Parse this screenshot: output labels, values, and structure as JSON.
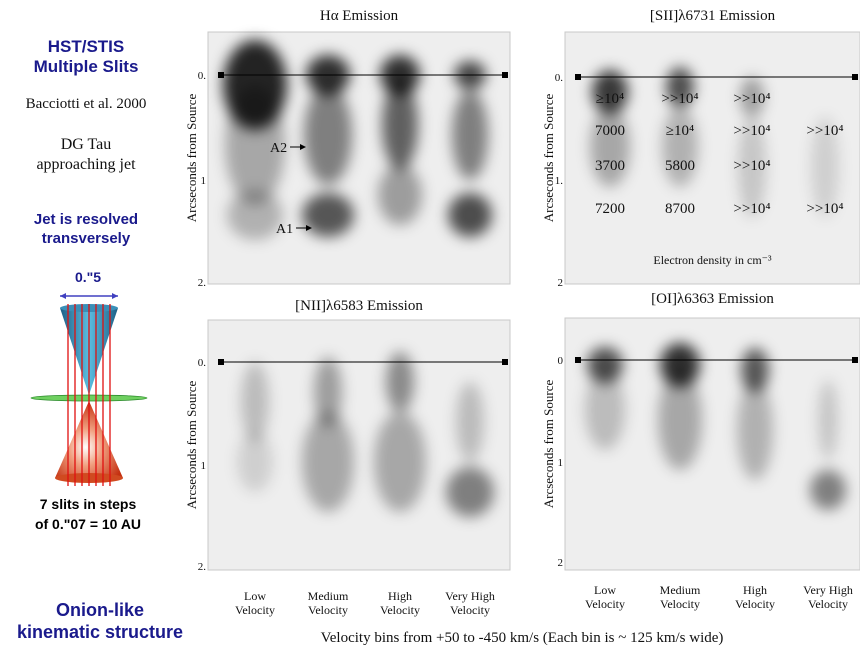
{
  "sidebar": {
    "title": [
      "HST/STIS",
      "Multiple Slits"
    ],
    "citation": "Bacciotti et al. 2000",
    "object": [
      "DG Tau",
      "approaching jet"
    ],
    "resolved": [
      "Jet is resolved",
      "transversely"
    ],
    "width_label": "0.\"5",
    "slits": [
      "7 slits in steps",
      "of 0.\"07 = 10 AU"
    ],
    "conclusion": [
      "Onion-like",
      "kinematic structure"
    ]
  },
  "panels": [
    {
      "title": "Hα Emission",
      "y_label": "Arcseconds  from Source",
      "y_ticks": [
        "0.",
        "1",
        "2."
      ],
      "annotations": [
        "A2",
        "A1"
      ]
    },
    {
      "title": "[SII]λ6731 Emission",
      "y_label": "Arcseconds  from Source",
      "y_ticks": [
        "0.",
        "1.",
        "2"
      ],
      "density_rows": [
        [
          "≥10⁴",
          ">>10⁴",
          ">>10⁴"
        ],
        [
          "7000",
          "≥10⁴",
          ">>10⁴",
          ">>10⁴"
        ],
        [
          "3700",
          "5800",
          ">>10⁴"
        ],
        [
          "7200",
          "8700",
          ">>10⁴",
          ">>10⁴"
        ]
      ],
      "density_caption": "Electron density in cm⁻³"
    },
    {
      "title": "[NII]λ6583 Emission",
      "y_label": "Arcseconds  from Source",
      "y_ticks": [
        "0.",
        "1",
        "2."
      ]
    },
    {
      "title": "[OI]λ6363  Emission",
      "y_label": "Arcseconds  from Source",
      "y_ticks": [
        "0",
        "1",
        "2"
      ]
    }
  ],
  "velocity_bins": [
    [
      "Low",
      "Velocity"
    ],
    [
      "Medium",
      "Velocity"
    ],
    [
      "High",
      "Velocity"
    ],
    [
      "Very High",
      "Velocity"
    ]
  ],
  "footer": "Velocity bins from +50 to -450 km/s  (Each bin is ~ 125 km/s wide)"
}
